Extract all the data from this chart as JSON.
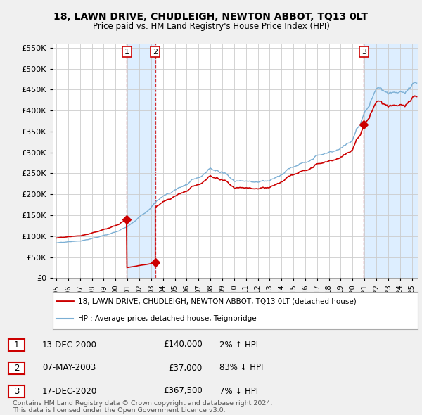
{
  "title": "18, LAWN DRIVE, CHUDLEIGH, NEWTON ABBOT, TQ13 0LT",
  "subtitle": "Price paid vs. HM Land Registry's House Price Index (HPI)",
  "ylim": [
    0,
    560000
  ],
  "yticks": [
    0,
    50000,
    100000,
    150000,
    200000,
    250000,
    300000,
    350000,
    400000,
    450000,
    500000,
    550000
  ],
  "bg_color": "#f0f0f0",
  "plot_bg_color": "#ffffff",
  "grid_color": "#cccccc",
  "hpi_color": "#7bafd4",
  "price_color": "#cc0000",
  "shade_color": "#ddeeff",
  "purchases": [
    {
      "x": 2000.96,
      "price": 140000,
      "label": "1"
    },
    {
      "x": 2003.35,
      "price": 37000,
      "label": "2"
    },
    {
      "x": 2020.96,
      "price": 367500,
      "label": "3"
    }
  ],
  "legend_label_red": "18, LAWN DRIVE, CHUDLEIGH, NEWTON ABBOT, TQ13 0LT (detached house)",
  "legend_label_blue": "HPI: Average price, detached house, Teignbridge",
  "table_rows": [
    {
      "num": "1",
      "date": "13-DEC-2000",
      "price": "£140,000",
      "pct": "2% ↑ HPI"
    },
    {
      "num": "2",
      "date": "07-MAY-2003",
      "price": "£37,000",
      "pct": "83% ↓ HPI"
    },
    {
      "num": "3",
      "date": "17-DEC-2020",
      "price": "£367,500",
      "pct": "7% ↓ HPI"
    }
  ],
  "footnote": "Contains HM Land Registry data © Crown copyright and database right 2024.\nThis data is licensed under the Open Government Licence v3.0.",
  "xmin": 1994.7,
  "xmax": 2025.5
}
